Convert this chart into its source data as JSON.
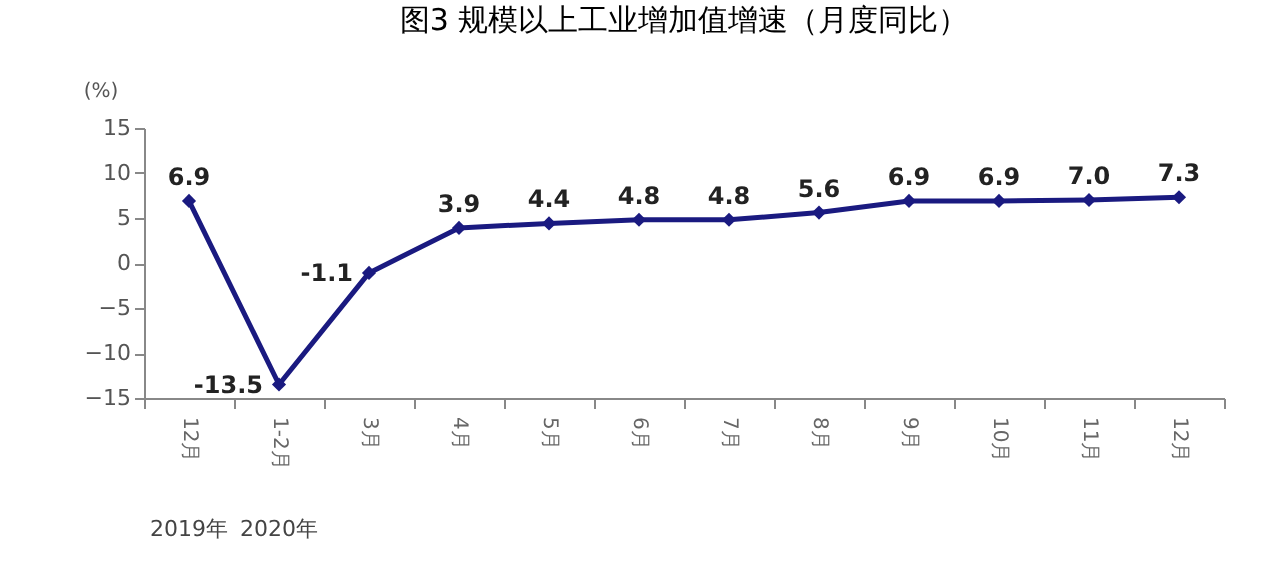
{
  "chart_data": {
    "type": "line",
    "title": "图3   规模以上工业增加值增速（月度同比）",
    "ylabel": "(%)",
    "categories": [
      "12月",
      "1-2月",
      "3月",
      "4月",
      "5月",
      "6月",
      "7月",
      "8月",
      "9月",
      "10月",
      "11月",
      "12月"
    ],
    "series": [
      {
        "color": "#1a1a80",
        "values": [
          6.9,
          -13.5,
          -1.1,
          3.9,
          4.4,
          4.8,
          4.8,
          5.6,
          6.9,
          6.9,
          7.0,
          7.3
        ],
        "value_labels": [
          "6.9",
          "-13.5",
          "-1.1",
          "3.9",
          "4.4",
          "4.8",
          "4.8",
          "5.6",
          "6.9",
          "6.9",
          "7.0",
          "7.3"
        ]
      }
    ],
    "ylim": [
      -15,
      15
    ],
    "yticks": [
      -15,
      -10,
      -5,
      0,
      5,
      10,
      15
    ],
    "grid": false,
    "marker": "diamond",
    "line_style": "solid",
    "annotations": [
      "2019年",
      "2020年"
    ]
  }
}
